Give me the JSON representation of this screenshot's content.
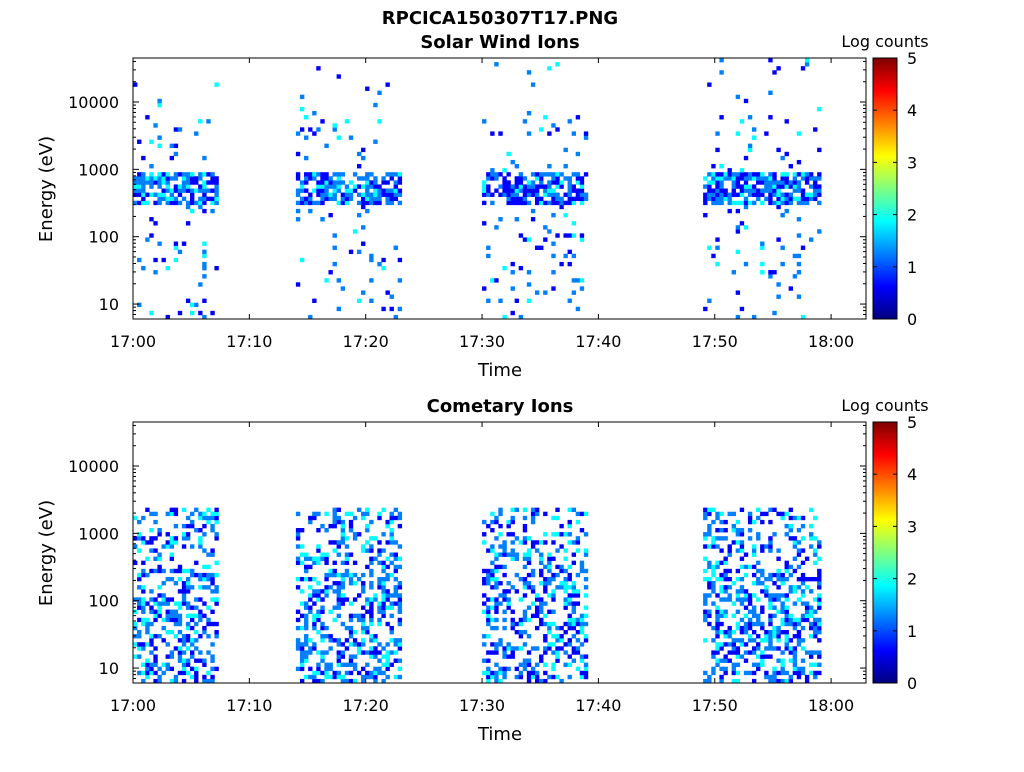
{
  "figure_title": "RPCICA150307T17.PNG",
  "colormap": [
    "#00007f",
    "#0000ff",
    "#007fff",
    "#00ffff",
    "#7fff7f",
    "#ffff00",
    "#ff7f00",
    "#ff0000",
    "#7f0000"
  ],
  "chart_data": [
    {
      "type": "heatmap",
      "title": "Solar Wind Ions",
      "xlabel": "Time",
      "ylabel": "Energy (eV)",
      "yscale": "log",
      "ylim": [
        6,
        45000
      ],
      "xlim": [
        "17:00",
        "18:03"
      ],
      "x_ticks": [
        "17:00",
        "17:10",
        "17:20",
        "17:30",
        "17:40",
        "17:50",
        "18:00"
      ],
      "y_ticks": [
        10,
        100,
        1000,
        10000
      ],
      "y_tick_labels": [
        "10",
        "100",
        "1000",
        "10000"
      ],
      "colorbar": {
        "label": "Log counts",
        "min": 0,
        "max": 5,
        "ticks": [
          "0",
          "1",
          "2",
          "3",
          "4",
          "5"
        ]
      },
      "grid": false,
      "data_intervals": [
        [
          "17:00",
          "17:07"
        ],
        [
          "17:14",
          "17:23"
        ],
        [
          "17:30",
          "17:39"
        ],
        [
          "17:49",
          "17:59"
        ]
      ],
      "dominant_energy_band_eV": [
        300,
        900
      ],
      "typical_log_counts": 1.5,
      "max_log_counts": 2.3
    },
    {
      "type": "heatmap",
      "title": "Cometary Ions",
      "xlabel": "Time",
      "ylabel": "Energy (eV)",
      "yscale": "log",
      "ylim": [
        6,
        45000
      ],
      "xlim": [
        "17:00",
        "18:03"
      ],
      "x_ticks": [
        "17:00",
        "17:10",
        "17:20",
        "17:30",
        "17:40",
        "17:50",
        "18:00"
      ],
      "y_ticks": [
        10,
        100,
        1000,
        10000
      ],
      "y_tick_labels": [
        "10",
        "100",
        "1000",
        "10000"
      ],
      "colorbar": {
        "label": "Log counts",
        "min": 0,
        "max": 5,
        "ticks": [
          "0",
          "1",
          "2",
          "3",
          "4",
          "5"
        ]
      },
      "grid": false,
      "data_intervals": [
        [
          "17:00",
          "17:07"
        ],
        [
          "17:14",
          "17:23"
        ],
        [
          "17:30",
          "17:39"
        ],
        [
          "17:49",
          "17:59"
        ]
      ],
      "dominant_energy_band_eV": [
        6,
        2500
      ],
      "typical_log_counts": 1.6,
      "max_log_counts": 2.4
    }
  ]
}
